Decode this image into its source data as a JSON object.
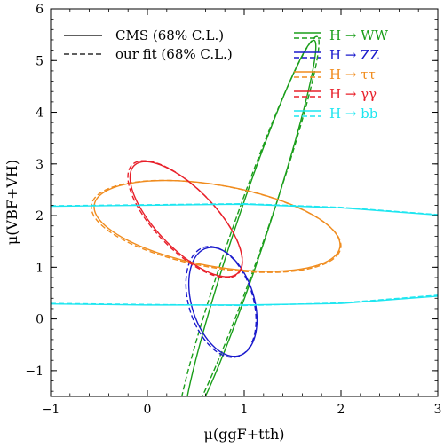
{
  "chart_data": {
    "type": "contour",
    "xlabel": "μ(ggF+tth)",
    "ylabel": "μ(VBF+VH)",
    "xlim": [
      -1,
      3
    ],
    "ylim": [
      -1.5,
      6
    ],
    "xticks": [
      "−1",
      "0",
      "1",
      "2",
      "3"
    ],
    "yticks": [
      "−1",
      "0",
      "1",
      "2",
      "3",
      "4",
      "5",
      "6"
    ],
    "xtick_values": [
      -1,
      0,
      1,
      2,
      3
    ],
    "ytick_values": [
      -1,
      0,
      1,
      2,
      3,
      4,
      5,
      6
    ],
    "grid": false,
    "legend_styles": [
      {
        "label": "CMS (68% C.L.)",
        "dash": "solid"
      },
      {
        "label": "our fit (68% C.L.)",
        "dash": "dashed"
      }
    ],
    "legend_channels": [
      {
        "label": "H → WW",
        "color": "#1a9e1a"
      },
      {
        "label": "H → ZZ",
        "color": "#1a1acc"
      },
      {
        "label": "H → ττ",
        "color": "#f08c1e"
      },
      {
        "label": "H → γγ",
        "color": "#e8202a"
      },
      {
        "label": "H → bb",
        "color": "#1ee6f0"
      }
    ],
    "series": [
      {
        "channel": "H → WW",
        "color": "#1a9e1a",
        "shape": "ellipse",
        "cms": {
          "cx": 1.06,
          "cy": 1.65,
          "ra": 3.8,
          "rb": 0.17,
          "angle_deg": -100
        },
        "fit": {
          "cx": 1.04,
          "cy": 1.63,
          "ra": 3.9,
          "rb": 0.18,
          "angle_deg": -100.5
        }
      },
      {
        "channel": "H → ZZ",
        "color": "#1a1acc",
        "shape": "ellipse",
        "cms": {
          "cx": 0.78,
          "cy": 0.33,
          "ra": 1.06,
          "rb": 0.33,
          "angle_deg": 97
        },
        "fit": {
          "cx": 0.76,
          "cy": 0.33,
          "ra": 1.08,
          "rb": 0.34,
          "angle_deg": 97
        }
      },
      {
        "channel": "H → ττ",
        "color": "#f08c1e",
        "shape": "ellipse",
        "cms": {
          "cx": 0.72,
          "cy": 1.8,
          "ra": 1.35,
          "rb": 0.75,
          "angle_deg": -24
        },
        "fit": {
          "cx": 0.71,
          "cy": 1.79,
          "ra": 1.37,
          "rb": 0.76,
          "angle_deg": -24
        }
      },
      {
        "channel": "H → γγ",
        "color": "#e8202a",
        "shape": "ellipse",
        "cms": {
          "cx": 0.4,
          "cy": 1.93,
          "ra": 1.2,
          "rb": 0.37,
          "angle_deg": -67
        },
        "fit": {
          "cx": 0.39,
          "cy": 1.93,
          "ra": 1.22,
          "rb": 0.38,
          "angle_deg": -67
        }
      },
      {
        "channel": "H → bb",
        "color": "#1ee6f0",
        "shape": "band",
        "cms": {
          "upper": [
            [
              -1,
              2.18
            ],
            [
              0,
              2.2
            ],
            [
              1,
              2.22
            ],
            [
              2,
              2.15
            ],
            [
              3,
              2.01
            ]
          ],
          "lower": [
            [
              -1,
              0.29
            ],
            [
              0,
              0.27
            ],
            [
              1,
              0.27
            ],
            [
              2,
              0.3
            ],
            [
              3,
              0.44
            ]
          ]
        },
        "fit": {
          "upper": [
            [
              -1,
              2.19
            ],
            [
              0,
              2.21
            ],
            [
              1,
              2.23
            ],
            [
              2,
              2.16
            ],
            [
              3,
              2.02
            ]
          ],
          "lower": [
            [
              -1,
              0.3
            ],
            [
              0,
              0.28
            ],
            [
              1,
              0.26
            ],
            [
              2,
              0.31
            ],
            [
              3,
              0.46
            ]
          ]
        }
      }
    ]
  }
}
